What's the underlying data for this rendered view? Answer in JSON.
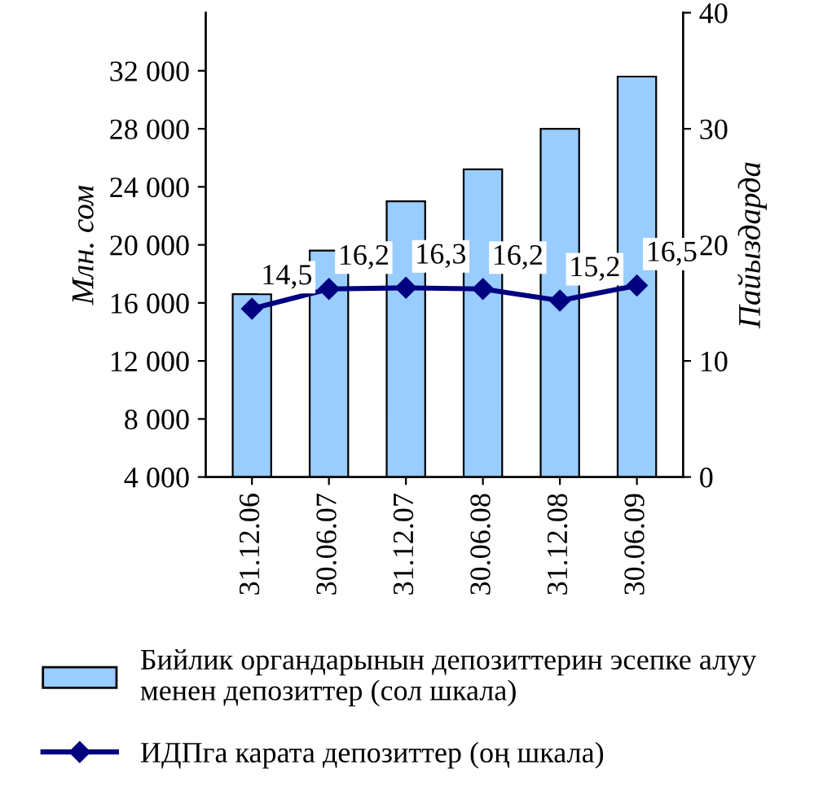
{
  "chart_data": {
    "type": "bar",
    "categories": [
      "31.12.06",
      "30.06.07",
      "31.12.07",
      "30.06.08",
      "31.12.08",
      "30.06.09"
    ],
    "ylabel": "Млн. сом",
    "y2label": "Пайыздарда",
    "ylim": [
      4000,
      36000
    ],
    "yticks": [
      {
        "value": 4000,
        "label": "4 000"
      },
      {
        "value": 8000,
        "label": "8 000"
      },
      {
        "value": 12000,
        "label": "12 000"
      },
      {
        "value": 16000,
        "label": "16 000"
      },
      {
        "value": 20000,
        "label": "20 000"
      },
      {
        "value": 24000,
        "label": "24 000"
      },
      {
        "value": 28000,
        "label": "28 000"
      },
      {
        "value": 32000,
        "label": "32 000"
      }
    ],
    "y2lim": [
      0,
      40
    ],
    "y2ticks": [
      0,
      10,
      20,
      30,
      40
    ],
    "series": [
      {
        "name": "Бийлик органдарынын депозиттерин эсепке алуу менен депозиттер (сол шкала)",
        "color": "#99ccff",
        "values": [
          16600,
          19600,
          23000,
          25200,
          28000,
          31600
        ]
      },
      {
        "name": "ИДПга карата депозиттер (оң шкала)",
        "type": "line",
        "axis": "y2",
        "color": "#000080",
        "marker": "diamond",
        "values": [
          14.5,
          16.2,
          16.3,
          16.2,
          15.2,
          16.5
        ],
        "value_labels": [
          "14,5",
          "16,2",
          "16,3",
          "16,2",
          "15,2",
          "16,5"
        ]
      }
    ],
    "legend": "bottom",
    "grid": false
  }
}
